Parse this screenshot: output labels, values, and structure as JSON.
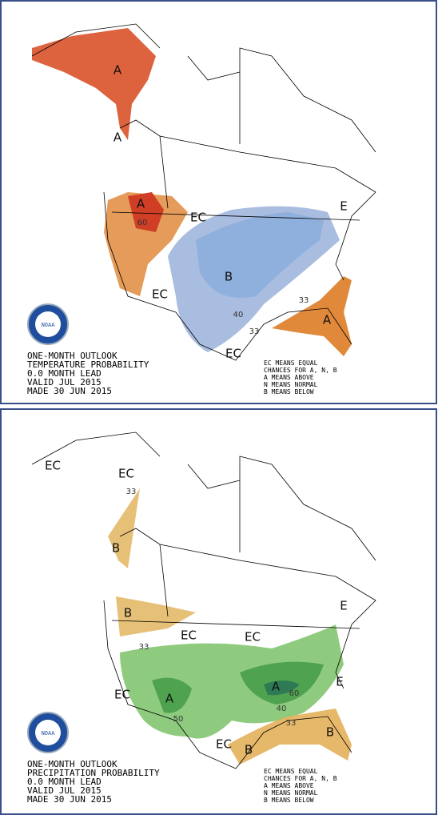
{
  "logo": "NOAA",
  "panels": [
    {
      "text_lines": [
        "ONE-MONTH OUTLOOK",
        "TEMPERATURE PROBABILITY",
        "0.0 MONTH LEAD",
        "VALID JUL 2015",
        "MADE 30 JUN 2015"
      ],
      "legend_lines": [
        "EC MEANS EQUAL",
        "CHANCES FOR A, N, B",
        "A MEANS ABOVE",
        "N MEANS NORMAL",
        "B MEANS BELOW"
      ],
      "map_labels": [
        "A",
        "A",
        "A",
        "60",
        "EC",
        "B",
        "EC",
        "40",
        "33",
        "33",
        "A",
        "EC",
        "E"
      ]
    },
    {
      "text_lines": [
        "ONE-MONTH OUTLOOK",
        "PRECIPITATION PROBABILITY",
        "0.0 MONTH LEAD",
        "VALID JUL 2015",
        "MADE 30 JUN 2015"
      ],
      "legend_lines": [
        "EC MEANS EQUAL",
        "CHANCES FOR A, N, B",
        "A MEANS ABOVE",
        "N MEANS NORMAL",
        "B MEANS BELOW"
      ],
      "map_labels": [
        "EC",
        "EC",
        "33",
        "B",
        "B",
        "EC",
        "EC",
        "33",
        "EC",
        "A",
        "50",
        "A",
        "60",
        "40",
        "33",
        "B",
        "B",
        "EC",
        "E",
        "E"
      ]
    }
  ]
}
